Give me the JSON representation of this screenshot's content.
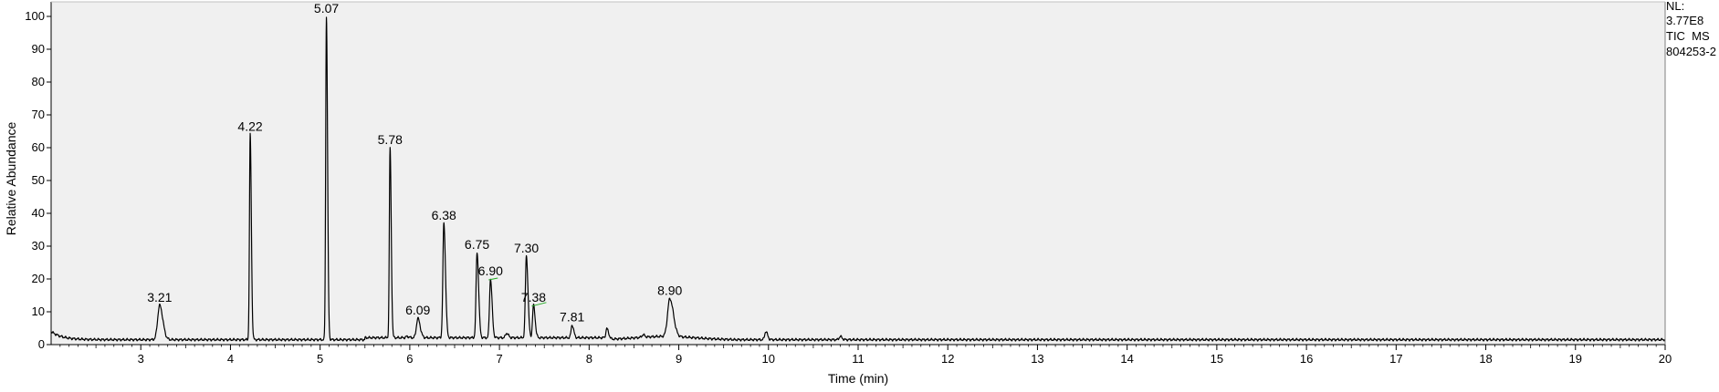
{
  "chart_data": {
    "type": "line",
    "xlabel": "Time (min)",
    "ylabel": "Relative Abundance",
    "xlim": [
      2.0,
      20.0
    ],
    "ylim": [
      0,
      100
    ],
    "x_ticks": [
      3,
      4,
      5,
      6,
      7,
      8,
      9,
      10,
      11,
      12,
      13,
      14,
      15,
      16,
      17,
      18,
      19,
      20
    ],
    "y_ticks": [
      0,
      10,
      20,
      30,
      40,
      50,
      60,
      70,
      80,
      90,
      100
    ],
    "colors": {
      "plot_background": "#f0f0f0",
      "trace": "#000000",
      "annotation_tick": "#22aa22"
    },
    "info_text": [
      "NL:",
      "3.77E8",
      "TIC  MS",
      "804253-2"
    ],
    "peaks": [
      {
        "label": "3.21",
        "x": 3.21,
        "y": 12
      },
      {
        "label": "4.22",
        "x": 4.22,
        "y": 64
      },
      {
        "label": "5.07",
        "x": 5.07,
        "y": 100
      },
      {
        "label": "5.78",
        "x": 5.78,
        "y": 60
      },
      {
        "label": "6.09",
        "x": 6.09,
        "y": 8
      },
      {
        "label": "6.38",
        "x": 6.38,
        "y": 37
      },
      {
        "label": "6.75",
        "x": 6.75,
        "y": 28
      },
      {
        "label": "6.90",
        "x": 6.9,
        "y": 20
      },
      {
        "label": "7.30",
        "x": 7.3,
        "y": 27
      },
      {
        "label": "7.38",
        "x": 7.38,
        "y": 12
      },
      {
        "label": "7.81",
        "x": 7.81,
        "y": 6
      },
      {
        "label": "8.90",
        "x": 8.9,
        "y": 14
      }
    ],
    "minor_peaks": [
      {
        "x": 3.75,
        "y": 1.5
      },
      {
        "x": 4.95,
        "y": 1.5
      },
      {
        "x": 5.7,
        "y": 2
      },
      {
        "x": 5.97,
        "y": 2.5
      },
      {
        "x": 7.08,
        "y": 3.5
      },
      {
        "x": 8.2,
        "y": 4.5
      },
      {
        "x": 8.6,
        "y": 3
      },
      {
        "x": 9.97,
        "y": 4
      },
      {
        "x": 10.8,
        "y": 2.5
      }
    ]
  }
}
